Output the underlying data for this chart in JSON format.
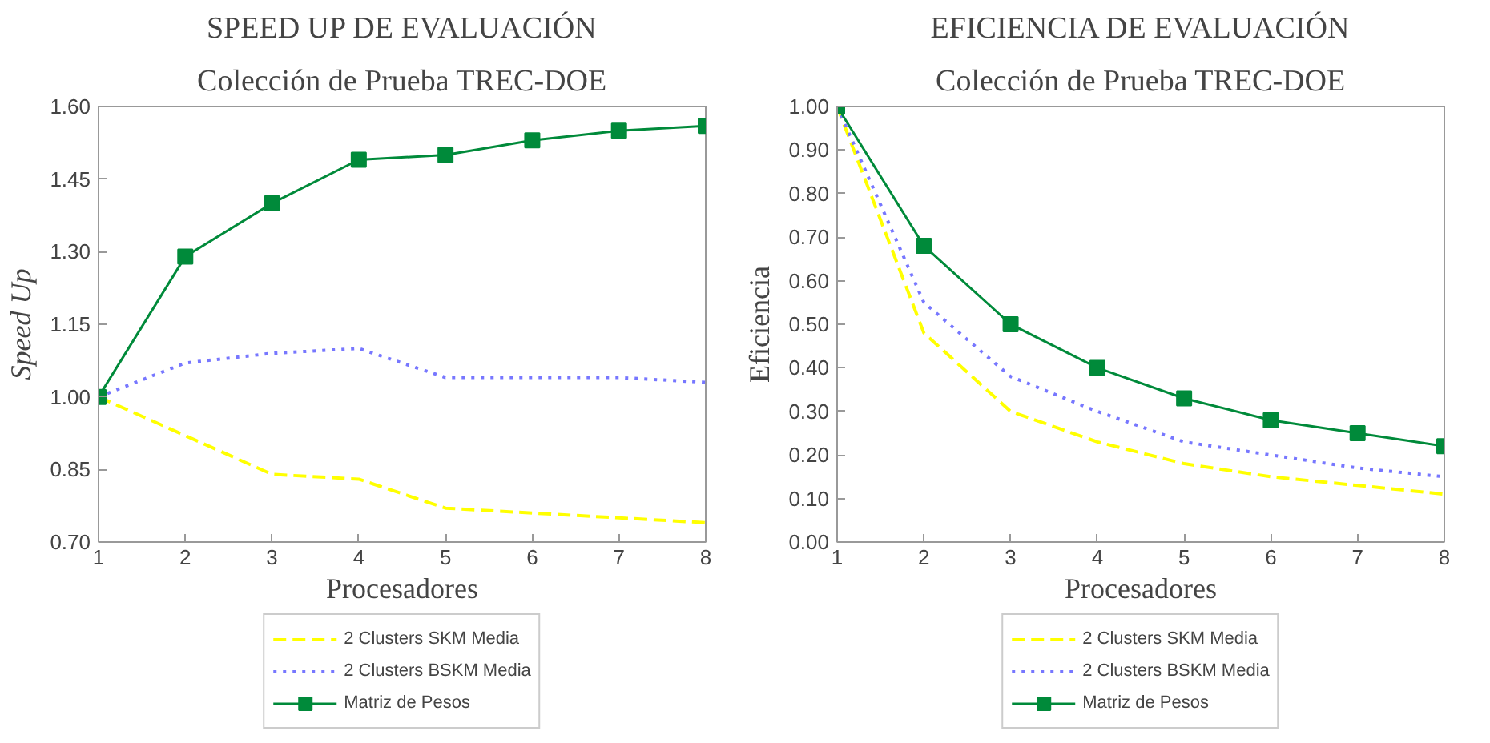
{
  "chart_data": [
    {
      "type": "line",
      "title": "SPEED UP DE EVALUACIÓN",
      "subtitle": "Colección de Prueba TREC-DOE",
      "xlabel": "Procesadores",
      "ylabel": "Speed Up",
      "x": [
        1,
        2,
        3,
        4,
        5,
        6,
        7,
        8
      ],
      "xlim": [
        1,
        8
      ],
      "xticks": [
        1,
        2,
        3,
        4,
        5,
        6,
        7,
        8
      ],
      "ylim": [
        0.7,
        1.6
      ],
      "yticks": [
        {
          "value": 0.7,
          "label": "0.70"
        },
        {
          "value": 0.85,
          "label": "0.85"
        },
        {
          "value": 1.0,
          "label": "1.00"
        },
        {
          "value": 1.15,
          "label": "1.15"
        },
        {
          "value": 1.3,
          "label": "1.30"
        },
        {
          "value": 1.45,
          "label": "1.45"
        },
        {
          "value": 1.6,
          "label": "1.60"
        }
      ],
      "grid": false,
      "legend": "bottom",
      "series": [
        {
          "name": "2 Clusters SKM Media",
          "color": "#ffff00",
          "line_style": "dashed",
          "marker": "none",
          "values": [
            1.0,
            0.92,
            0.84,
            0.83,
            0.77,
            0.76,
            0.75,
            0.74
          ]
        },
        {
          "name": "2 Clusters BSKM Media",
          "color": "#7777ff",
          "line_style": "dotted",
          "marker": "none",
          "values": [
            1.0,
            1.07,
            1.09,
            1.1,
            1.04,
            1.04,
            1.04,
            1.03
          ]
        },
        {
          "name": "Matriz de Pesos",
          "color": "#008a3a",
          "line_style": "solid",
          "marker": "square",
          "values": [
            1.0,
            1.29,
            1.4,
            1.49,
            1.5,
            1.53,
            1.55,
            1.56
          ]
        }
      ]
    },
    {
      "type": "line",
      "title": "EFICIENCIA DE EVALUACIÓN",
      "subtitle": "Colección de Prueba TREC-DOE",
      "xlabel": "Procesadores",
      "ylabel": "Eficiencia",
      "x": [
        1,
        2,
        3,
        4,
        5,
        6,
        7,
        8
      ],
      "xlim": [
        1,
        8
      ],
      "xticks": [
        1,
        2,
        3,
        4,
        5,
        6,
        7,
        8
      ],
      "ylim": [
        0.0,
        1.0
      ],
      "yticks": [
        {
          "value": 0.0,
          "label": "0.00"
        },
        {
          "value": 0.1,
          "label": "0.10"
        },
        {
          "value": 0.2,
          "label": "0.20"
        },
        {
          "value": 0.3,
          "label": "0.30"
        },
        {
          "value": 0.4,
          "label": "0.40"
        },
        {
          "value": 0.5,
          "label": "0.50"
        },
        {
          "value": 0.6,
          "label": "0.60"
        },
        {
          "value": 0.7,
          "label": "0.70"
        },
        {
          "value": 0.8,
          "label": "0.80"
        },
        {
          "value": 0.9,
          "label": "0.90"
        },
        {
          "value": 1.0,
          "label": "1.00"
        }
      ],
      "grid": false,
      "legend": "bottom",
      "series": [
        {
          "name": "2 Clusters SKM Media",
          "color": "#ffff00",
          "line_style": "dashed",
          "marker": "none",
          "values": [
            1.0,
            0.48,
            0.3,
            0.23,
            0.18,
            0.15,
            0.13,
            0.11
          ]
        },
        {
          "name": "2 Clusters BSKM Media",
          "color": "#7777ff",
          "line_style": "dotted",
          "marker": "none",
          "values": [
            1.0,
            0.55,
            0.38,
            0.3,
            0.23,
            0.2,
            0.17,
            0.15
          ]
        },
        {
          "name": "Matriz de Pesos",
          "color": "#008a3a",
          "line_style": "solid",
          "marker": "square",
          "values": [
            1.0,
            0.68,
            0.5,
            0.4,
            0.33,
            0.28,
            0.25,
            0.22
          ]
        }
      ]
    }
  ]
}
